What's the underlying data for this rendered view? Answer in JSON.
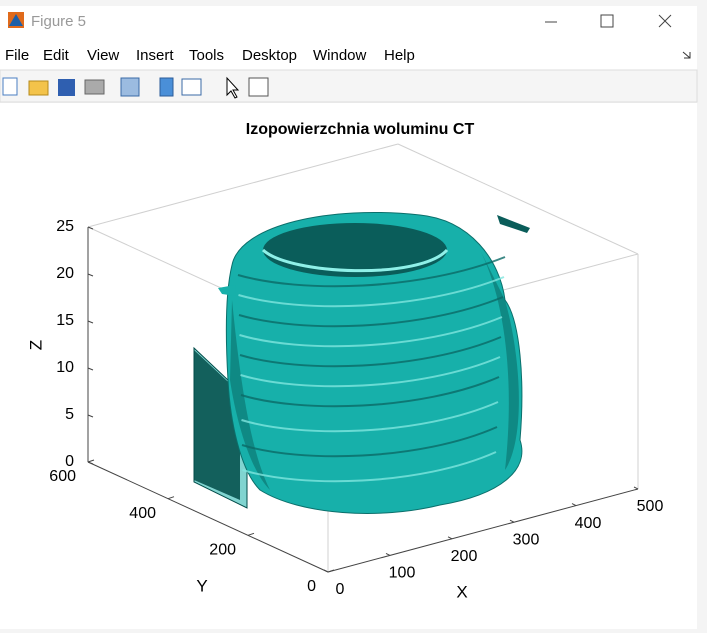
{
  "window": {
    "title": "Figure 5",
    "menu": [
      "File",
      "Edit",
      "View",
      "Insert",
      "Tools",
      "Desktop",
      "Window",
      "Help"
    ]
  },
  "chart_data": {
    "type": "isosurface",
    "title": "Izopowierzchnia woluminu CT",
    "xlabel": "X",
    "ylabel": "Y",
    "zlabel": "Z",
    "xlim": [
      0,
      500
    ],
    "ylim": [
      0,
      600
    ],
    "zlim": [
      0,
      25
    ],
    "xticks": [
      0,
      100,
      200,
      300,
      400,
      500
    ],
    "yticks": [
      0,
      200,
      400,
      600
    ],
    "zticks": [
      0,
      5,
      10,
      15,
      20,
      25
    ],
    "color": "#17b0aa"
  }
}
